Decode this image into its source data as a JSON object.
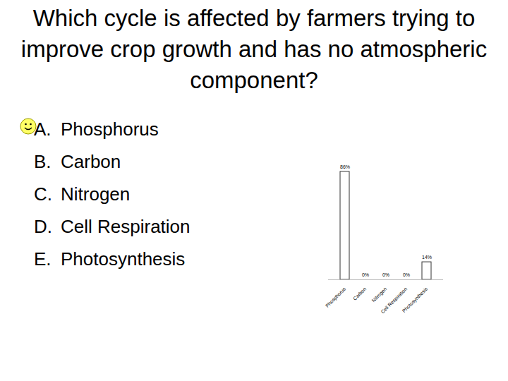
{
  "chart_data": {
    "type": "bar",
    "title": "Which cycle is affected by farmers trying to improve crop growth and has no atmospheric component?",
    "categories": [
      "Phosphorus",
      "Carbon",
      "Nitrogen",
      "Cell Respiration",
      "Photosynthesis"
    ],
    "values": [
      86,
      0,
      0,
      0,
      14
    ],
    "value_labels": [
      "86%",
      "0%",
      "0%",
      "0%",
      "14%"
    ],
    "data_labels": true,
    "color": "#ffffff",
    "ylim": [
      0,
      100
    ],
    "tick_labels": "x",
    "grid": false
  },
  "slide": {
    "options": [
      {
        "letter": "A.",
        "text": "Phosphorus"
      },
      {
        "letter": "B.",
        "text": "Carbon"
      },
      {
        "letter": "C.",
        "text": "Nitrogen"
      },
      {
        "letter": "D.",
        "text": "Cell Respiration"
      },
      {
        "letter": "E.",
        "text": "Photosynthesis"
      }
    ]
  }
}
